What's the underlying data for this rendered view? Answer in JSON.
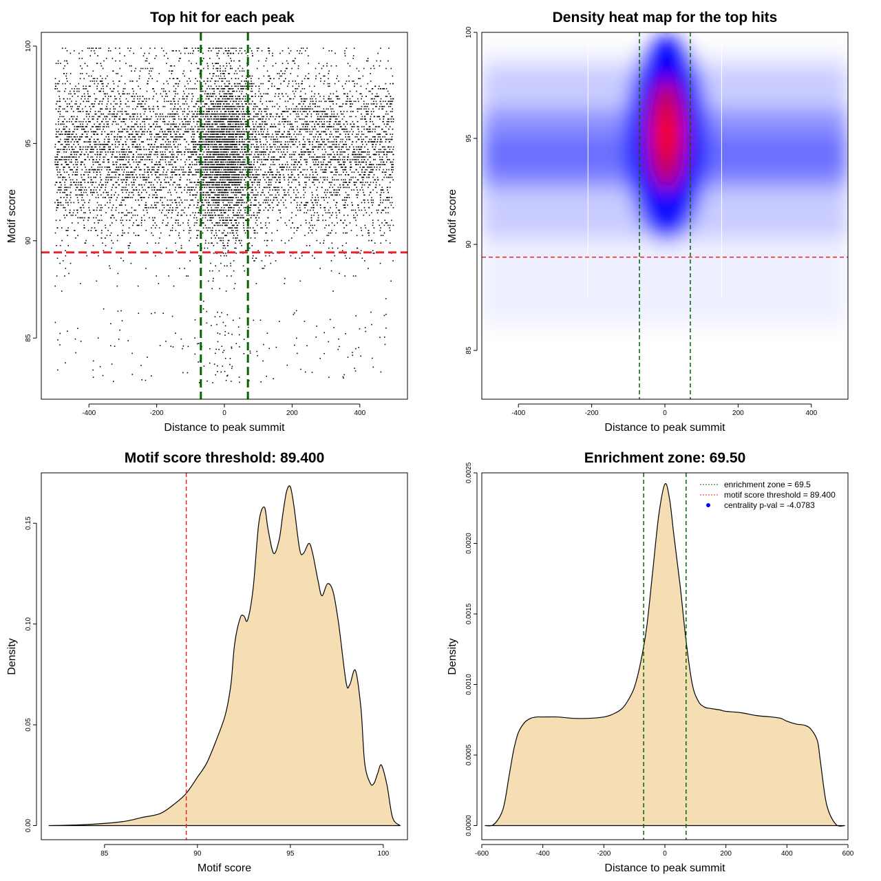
{
  "colors": {
    "green": "#006400",
    "red": "#e8212a",
    "fill": "#f5deb3",
    "point": "#000000",
    "legend_blue": "#0000ff"
  },
  "chart_data": [
    {
      "id": "scatter",
      "type": "scatter",
      "title": "Top hit for each peak",
      "xlabel": "Distance to peak summit",
      "ylabel": "Motif score",
      "xlim": [
        -500,
        500
      ],
      "ylim": [
        82,
        100
      ],
      "xticks": [
        -400,
        -200,
        0,
        200,
        400
      ],
      "yticks": [
        85,
        90,
        95,
        100
      ],
      "vlines": [
        -69.5,
        69.5
      ],
      "hline": 89.4,
      "scatter_model": {
        "n_points": 9000,
        "x_range": [
          -500,
          500
        ],
        "score_min": 82.7,
        "score_max": 100,
        "center_fraction": 0.24,
        "center_sd": 45
      }
    },
    {
      "id": "heatmap",
      "type": "heatmap",
      "title": "Density heat map for the top hits",
      "xlabel": "Distance to peak summit",
      "ylabel": "Motif score",
      "xlim": [
        -500,
        500
      ],
      "ylim": [
        82.7,
        100
      ],
      "xticks": [
        -400,
        -200,
        0,
        200,
        400
      ],
      "yticks": [
        85,
        90,
        95,
        100
      ],
      "vlines": [
        -69.5,
        69.5
      ],
      "white_lines": [
        -210,
        155
      ],
      "hline": 89.4,
      "peak": {
        "x": 5,
        "y": 95.2
      },
      "color_ramp": [
        "white",
        "blue",
        "red"
      ]
    },
    {
      "id": "score-density",
      "type": "area",
      "title": "Motif score threshold: 89.400",
      "xlabel": "Motif score",
      "ylabel": "Density",
      "xlim": [
        81.6,
        101.3
      ],
      "ylim": [
        -0.007,
        0.175
      ],
      "xticks": [
        85,
        90,
        95,
        100
      ],
      "yticks": [
        0.0,
        0.05,
        0.1,
        0.15
      ],
      "ytick_labels": [
        "0.00",
        "0.05",
        "0.10",
        "0.15"
      ],
      "vline": 89.4,
      "x": [
        82.0,
        84.0,
        86.0,
        87.0,
        88.0,
        88.8,
        89.4,
        90.0,
        90.5,
        91.0,
        91.5,
        91.8,
        92.0,
        92.3,
        92.5,
        92.7,
        93.0,
        93.3,
        93.6,
        93.8,
        94.1,
        94.4,
        94.6,
        94.8,
        95.0,
        95.2,
        95.5,
        95.7,
        96.0,
        96.2,
        96.5,
        96.7,
        97.0,
        97.3,
        97.6,
        98.0,
        98.2,
        98.5,
        98.8,
        99.0,
        99.3,
        99.5,
        99.7,
        99.9,
        100.2,
        100.5,
        100.9
      ],
      "y": [
        0.0,
        0.0005,
        0.002,
        0.004,
        0.006,
        0.011,
        0.016,
        0.024,
        0.031,
        0.042,
        0.055,
        0.07,
        0.09,
        0.103,
        0.104,
        0.102,
        0.118,
        0.15,
        0.158,
        0.147,
        0.135,
        0.142,
        0.155,
        0.166,
        0.168,
        0.158,
        0.137,
        0.135,
        0.14,
        0.135,
        0.121,
        0.114,
        0.12,
        0.116,
        0.1,
        0.071,
        0.07,
        0.077,
        0.058,
        0.031,
        0.021,
        0.021,
        0.026,
        0.03,
        0.02,
        0.004,
        0.0
      ],
      "fill": true
    },
    {
      "id": "distance-density",
      "type": "area",
      "title": "Enrichment zone: 69.50",
      "xlabel": "Distance to peak summit",
      "ylabel": "Density",
      "xlim": [
        -600,
        600
      ],
      "ylim": [
        -0.0001,
        0.0025
      ],
      "xticks": [
        -600,
        -400,
        -200,
        0,
        200,
        400,
        600
      ],
      "yticks": [
        0.0,
        0.0005,
        0.001,
        0.0015,
        0.002,
        0.0025
      ],
      "ytick_labels": [
        "0.0000",
        "0.0005",
        "0.0010",
        "0.0015",
        "0.0020",
        "0.0025"
      ],
      "vlines": [
        -69.5,
        69.5
      ],
      "x": [
        -590,
        -560,
        -530,
        -510,
        -495,
        -480,
        -460,
        -440,
        -420,
        -400,
        -350,
        -300,
        -250,
        -200,
        -170,
        -140,
        -120,
        -100,
        -80,
        -60,
        -40,
        -20,
        0,
        15,
        30,
        50,
        70,
        90,
        110,
        130,
        150,
        180,
        200,
        250,
        300,
        350,
        380,
        400,
        430,
        460,
        480,
        500,
        510,
        530,
        560,
        590
      ],
      "y": [
        0.0,
        1e-05,
        0.00012,
        0.00036,
        0.00054,
        0.00066,
        0.00073,
        0.00076,
        0.00077,
        0.00077,
        0.00077,
        0.00076,
        0.00076,
        0.00077,
        0.00079,
        0.00083,
        0.00089,
        0.00098,
        0.00115,
        0.0014,
        0.0018,
        0.0022,
        0.00242,
        0.00232,
        0.00205,
        0.0017,
        0.0013,
        0.001,
        0.00088,
        0.00084,
        0.00083,
        0.00082,
        0.00081,
        0.0008,
        0.00078,
        0.00077,
        0.00076,
        0.00074,
        0.00072,
        0.00071,
        0.00068,
        0.0006,
        0.00045,
        0.00015,
        1e-05,
        0.0
      ],
      "fill": true,
      "legend": [
        {
          "label": "enrichment zone = 69.5",
          "style": "dotted",
          "color": "#006400"
        },
        {
          "label": "motif score threshold = 89.400",
          "style": "dotted",
          "color": "#e8212a"
        },
        {
          "label": "centrality p-val = -4.0783",
          "style": "point",
          "color": "#0000ff"
        }
      ],
      "legend_position": "top-right"
    }
  ]
}
